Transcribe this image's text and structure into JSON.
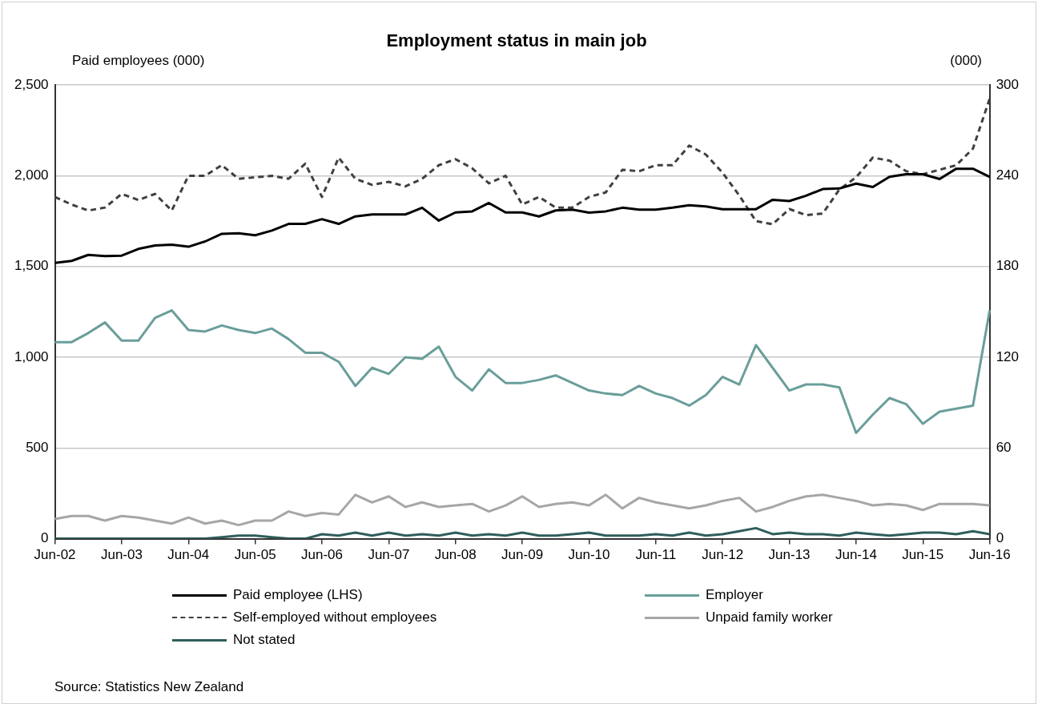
{
  "chart_data": {
    "type": "line",
    "title": "Employment status in main job",
    "ylabel": "Paid employees (000)",
    "y2label": "(000)",
    "categories": [
      "Jun-02",
      null,
      null,
      null,
      "Jun-03",
      null,
      null,
      null,
      "Jun-04",
      null,
      null,
      null,
      "Jun-05",
      null,
      null,
      null,
      "Jun-06",
      null,
      null,
      null,
      "Jun-07",
      null,
      null,
      null,
      "Jun-08",
      null,
      null,
      null,
      "Jun-09",
      null,
      null,
      null,
      "Jun-10",
      null,
      null,
      null,
      "Jun-11",
      null,
      null,
      null,
      "Jun-12",
      null,
      null,
      null,
      "Jun-13",
      null,
      null,
      null,
      "Jun-14",
      null,
      null,
      null,
      "Jun-15",
      null,
      null,
      null,
      "Jun-16"
    ],
    "series": [
      {
        "name": "Paid employee (LHS)",
        "color": "#000000",
        "line_style": "solid",
        "values": [
          1520,
          1531,
          1564,
          1557,
          1560,
          1597,
          1616,
          1620,
          1609,
          1638,
          1680,
          1683,
          1672,
          1698,
          1735,
          1735,
          1761,
          1735,
          1776,
          1787,
          1787,
          1787,
          1824,
          1753,
          1798,
          1804,
          1850,
          1798,
          1798,
          1776,
          1809,
          1813,
          1797,
          1804,
          1824,
          1813,
          1813,
          1824,
          1838,
          1831,
          1816,
          1816,
          1816,
          1868,
          1861,
          1890,
          1927,
          1930,
          1957,
          1938,
          1994,
          2009,
          2009,
          1982,
          2039,
          2039,
          1994
        ]
      },
      {
        "name": "Employer",
        "color": "#6a9e9a",
        "axis": "y2",
        "line_style": "solid",
        "values": [
          130,
          130,
          136,
          143,
          131,
          131,
          146,
          151,
          138,
          137,
          141,
          138,
          136,
          139,
          132,
          123,
          123,
          117,
          101,
          113,
          109,
          120,
          119,
          127,
          107,
          98,
          112,
          103,
          103,
          105,
          108,
          103,
          98,
          96,
          95,
          101,
          96,
          93,
          88,
          95,
          107,
          102,
          128,
          113,
          98,
          102,
          102,
          100,
          70,
          82,
          93,
          89,
          76,
          84,
          86,
          88,
          151
        ]
      },
      {
        "name": "Self-employed without employees",
        "color": "#404040",
        "axis": "y2",
        "line_style": "dashed",
        "values": [
          226,
          221,
          217,
          219,
          228,
          224,
          228,
          217,
          240,
          240,
          247,
          238,
          239,
          240,
          238,
          248,
          226,
          252,
          238,
          234,
          236,
          233,
          238,
          247,
          251,
          245,
          235,
          240,
          221,
          226,
          219,
          219,
          226,
          229,
          244,
          243,
          247,
          247,
          260,
          254,
          242,
          227,
          210,
          208,
          218,
          214,
          215,
          231,
          239,
          252,
          250,
          243,
          241,
          244,
          247,
          258,
          291
        ]
      },
      {
        "name": "Unpaid family worker",
        "color": "#a6a6a6",
        "axis": "y2",
        "line_style": "solid",
        "values": [
          13,
          15,
          15,
          12,
          15,
          14,
          12,
          10,
          14,
          10,
          12,
          9,
          12,
          12,
          18,
          15,
          17,
          16,
          29,
          24,
          28,
          21,
          24,
          21,
          22,
          23,
          18,
          22,
          28,
          21,
          23,
          24,
          22,
          29,
          20,
          27,
          24,
          22,
          20,
          22,
          25,
          27,
          18,
          21,
          25,
          28,
          29,
          27,
          25,
          22,
          23,
          22,
          19,
          23,
          23,
          23,
          22
        ]
      },
      {
        "name": "Not stated",
        "color": "#2f5e5c",
        "axis": "y2",
        "line_style": "solid",
        "values": [
          0,
          0,
          0,
          0,
          0,
          0,
          0,
          0,
          0,
          0,
          1,
          2,
          2,
          1,
          0,
          0,
          3,
          2,
          4,
          2,
          4,
          2,
          3,
          2,
          4,
          2,
          3,
          2,
          4,
          2,
          2,
          3,
          4,
          2,
          2,
          2,
          3,
          2,
          4,
          2,
          3,
          5,
          7,
          3,
          4,
          3,
          3,
          2,
          4,
          3,
          2,
          3,
          4,
          4,
          3,
          5,
          3
        ]
      }
    ],
    "ylim": [
      0,
      2500
    ],
    "yticks": [
      0,
      {
        "value": 500,
        "label": "500"
      },
      {
        "value": 1000,
        "label": "1,000"
      },
      {
        "value": 1500,
        "label": "1,500"
      },
      {
        "value": 2000,
        "label": "2,000"
      },
      {
        "value": 2500,
        "label": "2,500"
      }
    ],
    "y2lim": [
      0,
      300
    ],
    "y2ticks": [
      0,
      60,
      120,
      180,
      240,
      300
    ],
    "grid": "y",
    "legend": "bottom",
    "marker": "none",
    "annotations": [
      "Source: Statistics New Zealand"
    ]
  }
}
